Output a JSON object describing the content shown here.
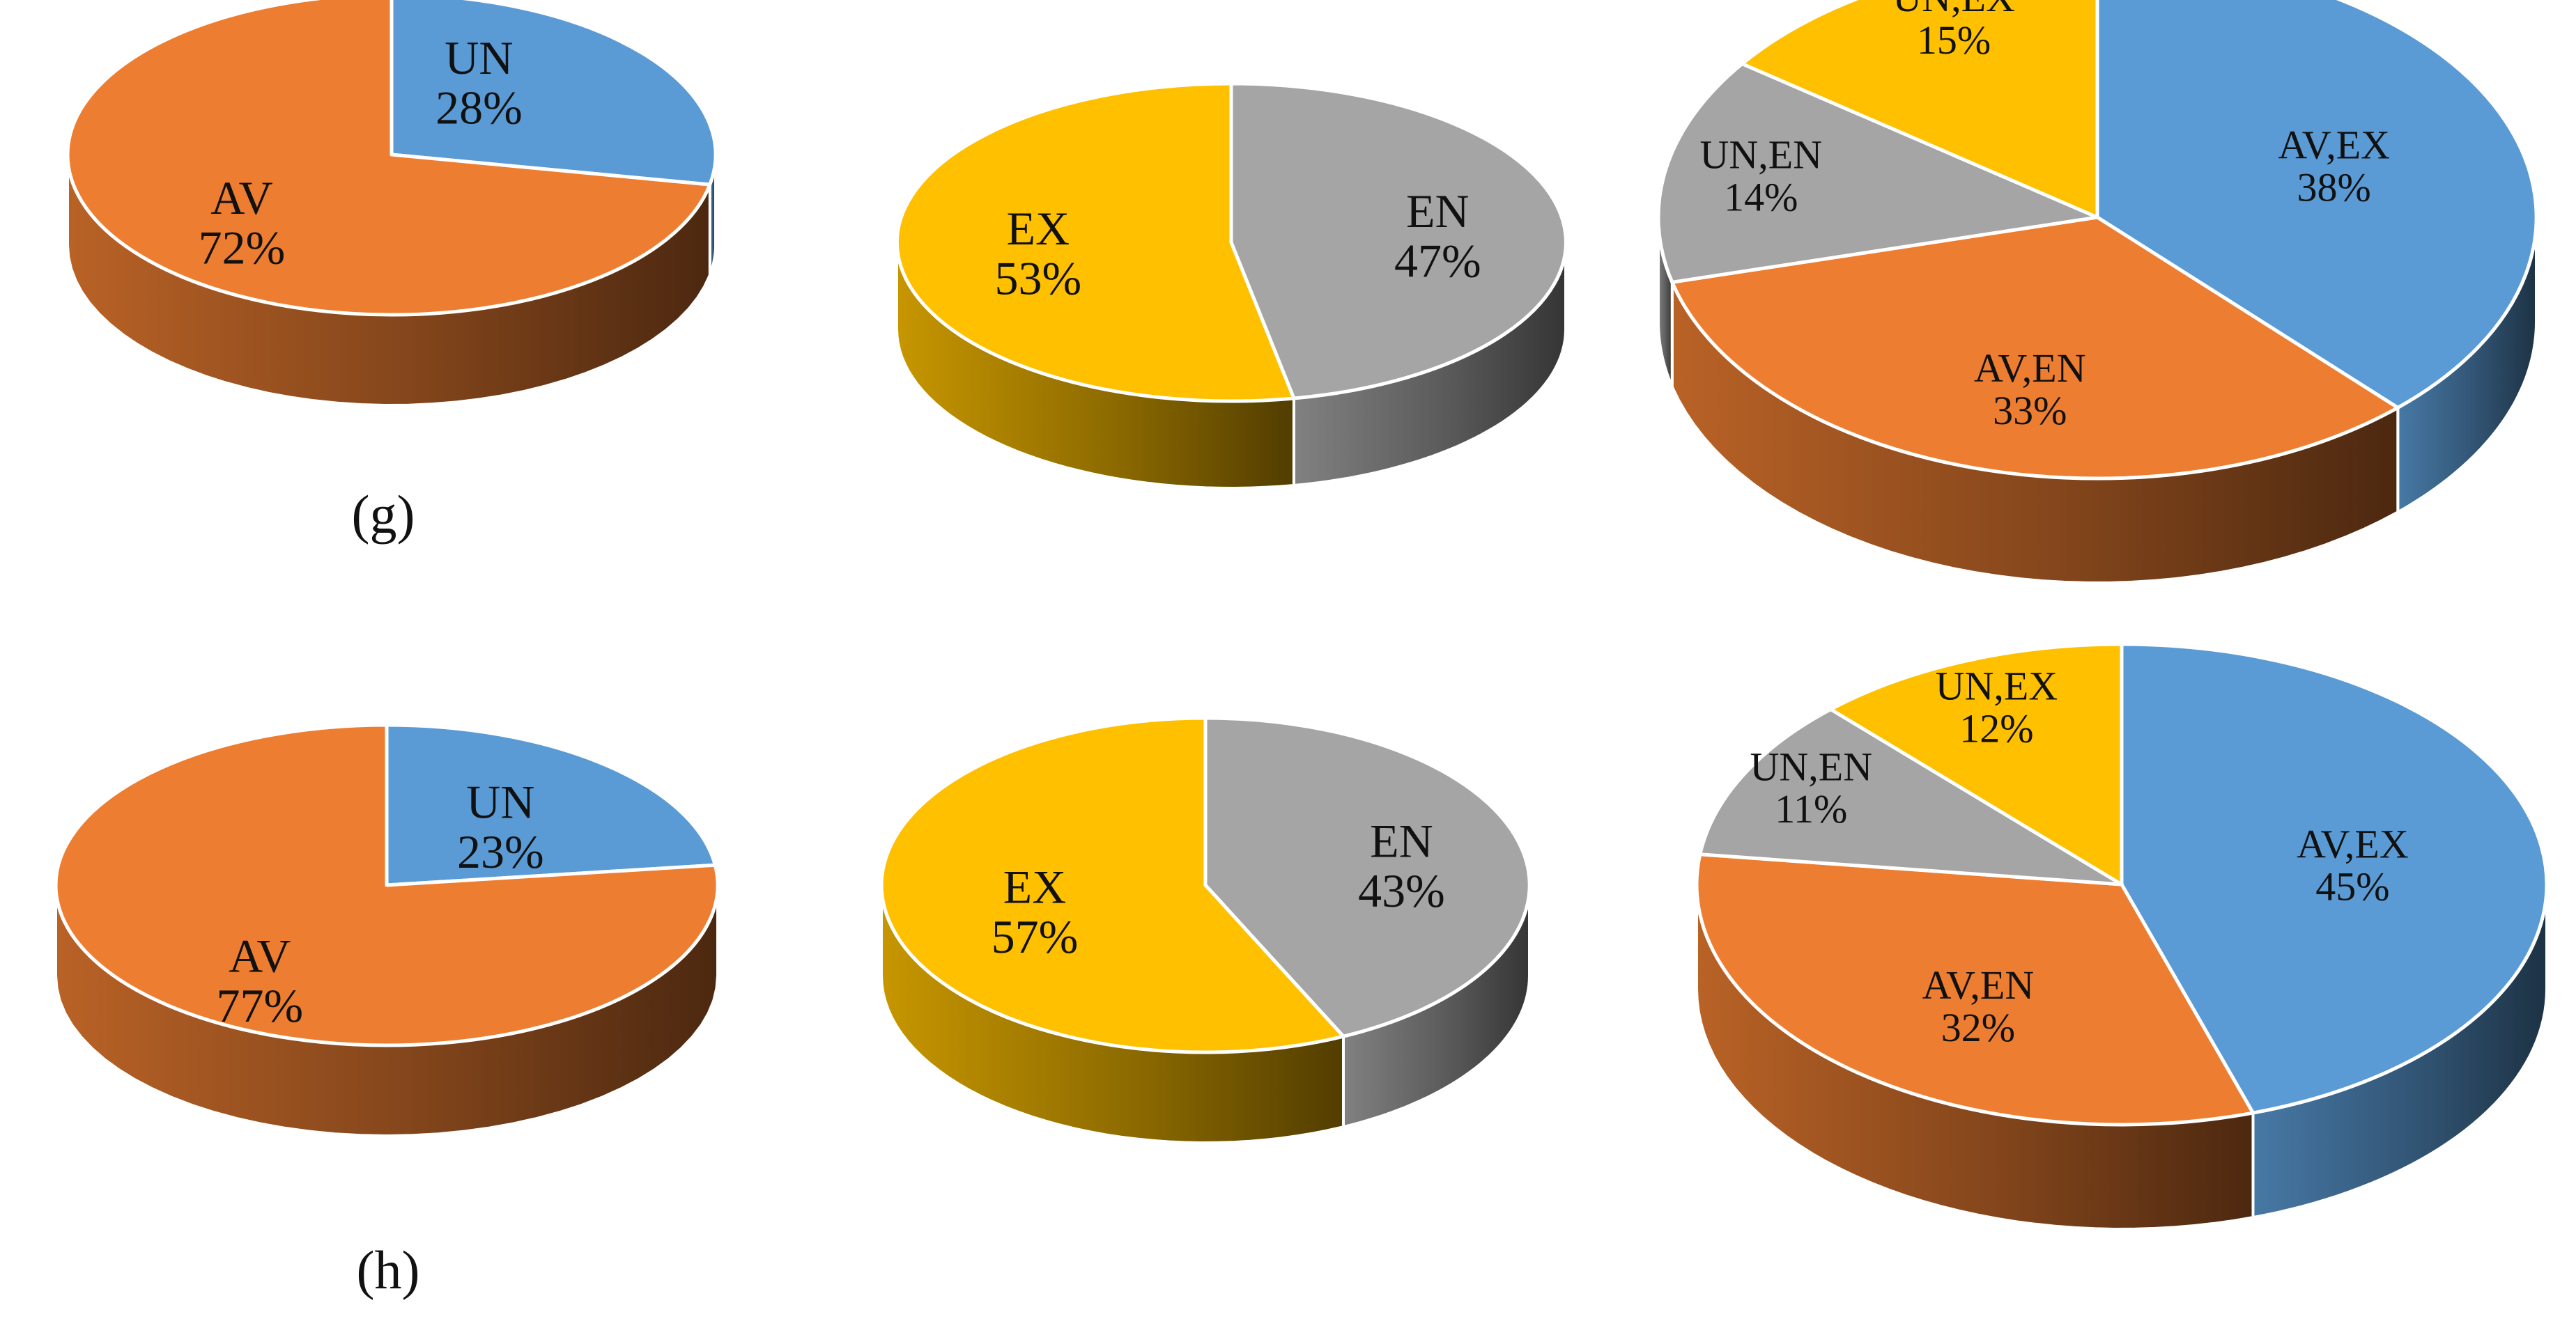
{
  "panel_labels": [
    "(g)",
    "(h)"
  ],
  "colors": {
    "AV": "#ED7D31",
    "UN": "#5B9BD5",
    "EX": "#FFC000",
    "EN": "#A5A5A5",
    "AV,EX": "#5B9BD5",
    "AV,EN": "#ED7D31",
    "UN,EN": "#A5A5A5",
    "UN,EX": "#FFC000"
  },
  "chart_data": [
    {
      "type": "pie",
      "panel": "(g)",
      "slices": [
        {
          "label": "UN",
          "pct": "28%",
          "value": 28
        },
        {
          "label": "AV",
          "pct": "72%",
          "value": 72
        }
      ]
    },
    {
      "type": "pie",
      "panel": "(g)",
      "slices": [
        {
          "label": "EN",
          "pct": "47%",
          "value": 47
        },
        {
          "label": "EX",
          "pct": "53%",
          "value": 53
        }
      ]
    },
    {
      "type": "pie",
      "panel": "(g)",
      "slices": [
        {
          "label": "AV,EX",
          "pct": "38%",
          "value": 38
        },
        {
          "label": "AV,EN",
          "pct": "33%",
          "value": 33
        },
        {
          "label": "UN,EN",
          "pct": "14%",
          "value": 14
        },
        {
          "label": "UN,EX",
          "pct": "15%",
          "value": 15
        }
      ]
    },
    {
      "type": "pie",
      "panel": "(h)",
      "slices": [
        {
          "label": "UN",
          "pct": "23%",
          "value": 23
        },
        {
          "label": "AV",
          "pct": "77%",
          "value": 77
        }
      ]
    },
    {
      "type": "pie",
      "panel": "(h)",
      "slices": [
        {
          "label": "EN",
          "pct": "43%",
          "value": 43
        },
        {
          "label": "EX",
          "pct": "57%",
          "value": 57
        }
      ]
    },
    {
      "type": "pie",
      "panel": "(h)",
      "slices": [
        {
          "label": "AV,EX",
          "pct": "45%",
          "value": 45
        },
        {
          "label": "AV,EN",
          "pct": "32%",
          "value": 32
        },
        {
          "label": "UN,EN",
          "pct": "11%",
          "value": 11
        },
        {
          "label": "UN,EX",
          "pct": "12%",
          "value": 12
        }
      ]
    }
  ]
}
